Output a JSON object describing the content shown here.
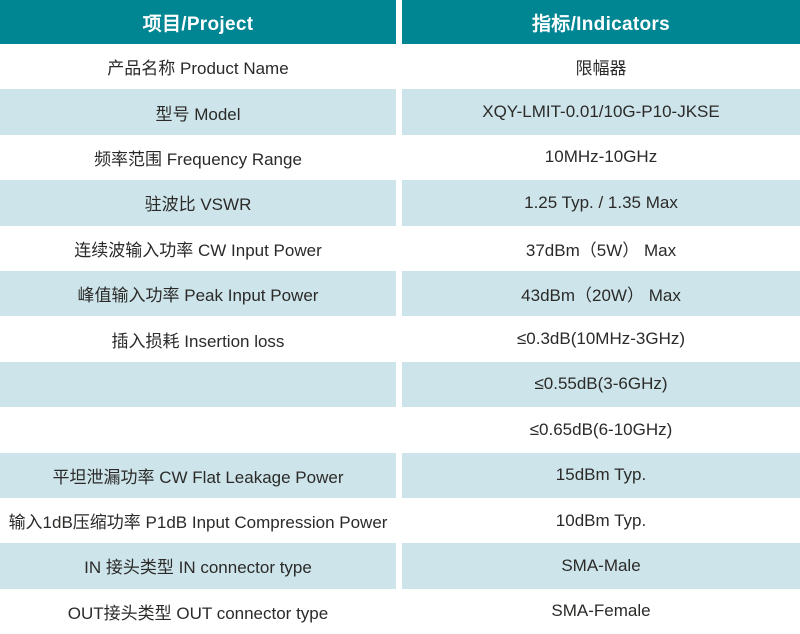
{
  "table": {
    "header": {
      "project": "项目/Project",
      "indicators": "指标/Indicators"
    },
    "rows": [
      {
        "project": "产品名称 Product Name",
        "indicator": "限幅器"
      },
      {
        "project": "型号 Model",
        "indicator": "XQY-LMIT-0.01/10G-P10-JKSE"
      },
      {
        "project": "频率范围 Frequency Range",
        "indicator": "10MHz-10GHz"
      },
      {
        "project": "驻波比 VSWR",
        "indicator": "1.25 Typ. / 1.35 Max"
      },
      {
        "project": "连续波输入功率 CW Input Power",
        "indicator": "37dBm（5W） Max"
      },
      {
        "project": "峰值输入功率 Peak Input Power",
        "indicator": "43dBm（20W） Max"
      },
      {
        "project": "插入损耗 Insertion loss",
        "indicator": "≤0.3dB(10MHz-3GHz)"
      },
      {
        "project": "",
        "indicator": "≤0.55dB(3-6GHz)"
      },
      {
        "project": "",
        "indicator": "≤0.65dB(6-10GHz)"
      },
      {
        "project": "平坦泄漏功率 CW Flat Leakage Power",
        "indicator": "15dBm Typ."
      },
      {
        "project": "输入1dB压缩功率 P1dB Input Compression Power",
        "indicator": "10dBm Typ."
      },
      {
        "project": "IN 接头类型 IN connector type",
        "indicator": "SMA-Male"
      },
      {
        "project": "OUT接头类型 OUT connector type",
        "indicator": "SMA-Female"
      }
    ]
  },
  "colors": {
    "header_bg": "#008593",
    "header_text": "#ffffff",
    "alt_row_bg": "#cde5ea",
    "row_bg": "#ffffff",
    "text": "#2b2a29"
  }
}
